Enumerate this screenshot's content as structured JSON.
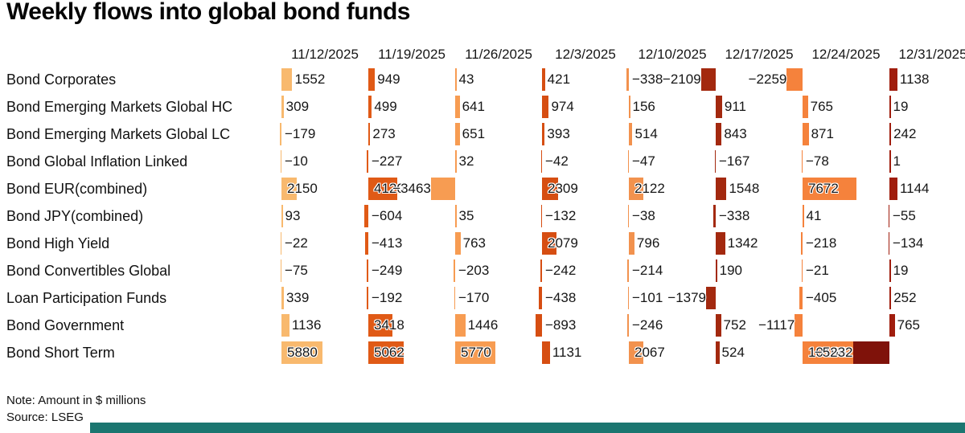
{
  "title": "Weekly flows into global bond funds",
  "note": "Note: Amount in $ millions",
  "source": "Source: LSEG",
  "accent_bar_color": "#1B7670",
  "chart_data": {
    "type": "table",
    "title": "Weekly flows into global bond funds",
    "unit": "$ millions",
    "columns": [
      "11/12/2025",
      "11/19/2025",
      "11/26/2025",
      "12/3/2025",
      "12/10/2025",
      "12/17/2025",
      "12/24/2025",
      "12/31/2025"
    ],
    "column_colors": [
      "#F8B96E",
      "#E05A16",
      "#F79C52",
      "#D64E12",
      "#F2924E",
      "#A3290F",
      "#F5823C",
      "#A01D0D"
    ],
    "rows": [
      {
        "label": "Bond Corporates",
        "values": [
          1552,
          949,
          43,
          421,
          -338,
          -2109,
          -2259,
          1138
        ]
      },
      {
        "label": "Bond Emerging Markets Global HC",
        "values": [
          309,
          499,
          641,
          974,
          156,
          911,
          765,
          19
        ]
      },
      {
        "label": "Bond Emerging Markets Global LC",
        "values": [
          -179,
          273,
          651,
          393,
          514,
          843,
          871,
          242
        ]
      },
      {
        "label": "Bond Global Inflation Linked",
        "values": [
          -10,
          -227,
          32,
          -42,
          -47,
          -167,
          -78,
          1
        ]
      },
      {
        "label": "Bond EUR(combined)",
        "values": [
          2150,
          4120,
          -3463,
          2309,
          2122,
          1548,
          7672,
          1144
        ]
      },
      {
        "label": "Bond JPY(combined)",
        "values": [
          93,
          -604,
          35,
          -132,
          -38,
          -338,
          41,
          -55
        ]
      },
      {
        "label": "Bond High Yield",
        "values": [
          -22,
          -413,
          763,
          2079,
          796,
          1342,
          -218,
          -134
        ]
      },
      {
        "label": "Bond Convertibles Global",
        "values": [
          -75,
          -249,
          -203,
          -242,
          -214,
          190,
          -21,
          19
        ]
      },
      {
        "label": "Loan Participation Funds",
        "values": [
          339,
          -192,
          -170,
          -438,
          -101,
          -1379,
          -405,
          252
        ]
      },
      {
        "label": "Bond Government",
        "values": [
          1136,
          3418,
          1446,
          -893,
          -246,
          752,
          -1117,
          765
        ]
      },
      {
        "label": "Bond Short Term",
        "values": [
          5880,
          5062,
          5770,
          1131,
          2067,
          524,
          10166,
          -5232
        ]
      }
    ],
    "cell_color_overrides": [
      {
        "row_index": 10,
        "col_index": 7,
        "color": "#7F120A"
      }
    ]
  }
}
